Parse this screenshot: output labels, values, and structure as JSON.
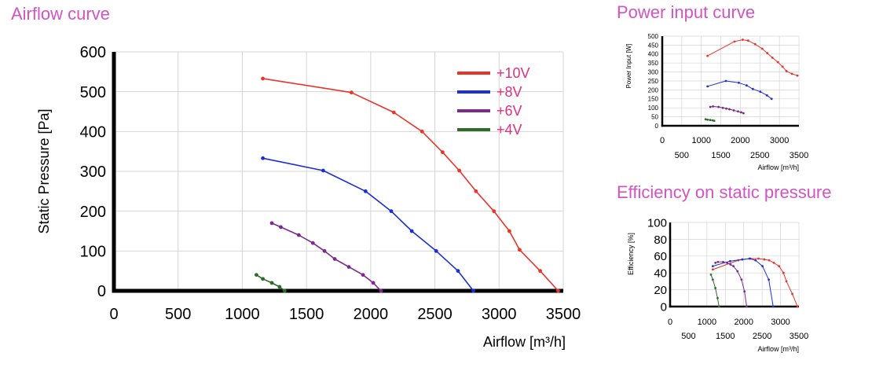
{
  "titles": {
    "airflow": "Airflow curve",
    "power": "Power input curve",
    "efficiency": "Efficiency on static pressure"
  },
  "colors": {
    "title": "#d353c4",
    "legend_text": "#e0317d",
    "s10": "#e8352b",
    "s8": "#1b2ed8",
    "s6": "#7b2a8e",
    "s4": "#2f6b2a"
  },
  "chart_data": [
    {
      "id": "airflow",
      "type": "line",
      "title": "Airflow curve",
      "xlabel": "Airflow [m³/h]",
      "ylabel": "Static Pressure [Pa]",
      "xlim": [
        0,
        3500
      ],
      "ylim": [
        0,
        600
      ],
      "xticks": [
        0,
        500,
        1000,
        1500,
        2000,
        2500,
        3000,
        3500
      ],
      "yticks": [
        0,
        100,
        200,
        300,
        400,
        500,
        600
      ],
      "grid": true,
      "legend": "top-right",
      "series": [
        {
          "name": "+10V",
          "color": "#e8352b",
          "x": [
            1160,
            1850,
            2180,
            2400,
            2560,
            2690,
            2820,
            2960,
            3080,
            3160,
            3320,
            3460
          ],
          "y": [
            533,
            498,
            448,
            400,
            348,
            302,
            250,
            200,
            150,
            103,
            50,
            0
          ]
        },
        {
          "name": "+8V",
          "color": "#1b2ed8",
          "x": [
            1160,
            1630,
            1960,
            2160,
            2320,
            2510,
            2680,
            2800
          ],
          "y": [
            333,
            302,
            250,
            200,
            150,
            100,
            50,
            0
          ]
        },
        {
          "name": "+6V",
          "color": "#7b2a8e",
          "x": [
            1230,
            1300,
            1440,
            1550,
            1640,
            1720,
            1830,
            1940,
            2020,
            2080
          ],
          "y": [
            170,
            160,
            140,
            120,
            100,
            80,
            60,
            40,
            20,
            0
          ]
        },
        {
          "name": "+4V",
          "color": "#2f6b2a",
          "x": [
            1110,
            1160,
            1230,
            1290,
            1330
          ],
          "y": [
            40,
            30,
            20,
            10,
            0
          ]
        }
      ]
    },
    {
      "id": "power",
      "type": "line",
      "title": "Power input curve",
      "xlabel": "Airflow [m³/h]",
      "ylabel": "Power Input [W]",
      "xlim": [
        0,
        3500
      ],
      "ylim": [
        0,
        500
      ],
      "xticks": [
        0,
        500,
        1000,
        1500,
        2000,
        2500,
        3000,
        3500
      ],
      "yticks": [
        0,
        50,
        100,
        150,
        200,
        250,
        300,
        350,
        400,
        450,
        500
      ],
      "grid": true,
      "series": [
        {
          "name": "+10V",
          "color": "#e8352b",
          "x": [
            1160,
            1850,
            2060,
            2200,
            2380,
            2560,
            2690,
            2820,
            2960,
            3080,
            3180,
            3320,
            3460
          ],
          "y": [
            390,
            470,
            480,
            475,
            455,
            430,
            405,
            380,
            355,
            330,
            305,
            290,
            280
          ]
        },
        {
          "name": "+8V",
          "color": "#1b2ed8",
          "x": [
            1160,
            1630,
            1960,
            2160,
            2320,
            2510,
            2680,
            2800
          ],
          "y": [
            220,
            250,
            240,
            225,
            205,
            190,
            170,
            150
          ]
        },
        {
          "name": "+6V",
          "color": "#7b2a8e",
          "x": [
            1230,
            1300,
            1440,
            1550,
            1640,
            1720,
            1830,
            1940,
            2020,
            2080
          ],
          "y": [
            105,
            108,
            105,
            100,
            96,
            92,
            86,
            80,
            75,
            70
          ]
        },
        {
          "name": "+4V",
          "color": "#2f6b2a",
          "x": [
            1110,
            1160,
            1230,
            1290,
            1330
          ],
          "y": [
            36,
            34,
            32,
            30,
            28
          ]
        }
      ]
    },
    {
      "id": "efficiency",
      "type": "line",
      "title": "Efficiency on static pressure",
      "xlabel": "Airflow [m³/h]",
      "ylabel": "Efficiency [%]",
      "xlim": [
        0,
        3500
      ],
      "ylim": [
        0,
        100
      ],
      "xticks": [
        0,
        500,
        1000,
        1500,
        2000,
        2500,
        3000,
        3500
      ],
      "yticks": [
        0,
        20,
        40,
        60,
        80,
        100
      ],
      "grid": true,
      "series": [
        {
          "name": "+10V",
          "color": "#e8352b",
          "x": [
            1160,
            1850,
            2180,
            2400,
            2560,
            2690,
            2820,
            2960,
            3080,
            3160,
            3320,
            3460
          ],
          "y": [
            44,
            55,
            57,
            57,
            56,
            55,
            52,
            48,
            40,
            30,
            15,
            0
          ]
        },
        {
          "name": "+8V",
          "color": "#1b2ed8",
          "x": [
            1160,
            1630,
            1960,
            2160,
            2320,
            2510,
            2680,
            2800
          ],
          "y": [
            48,
            54,
            56,
            57,
            55,
            48,
            32,
            0
          ]
        },
        {
          "name": "+6V",
          "color": "#7b2a8e",
          "x": [
            1230,
            1300,
            1440,
            1550,
            1640,
            1720,
            1830,
            1940,
            2020,
            2080
          ],
          "y": [
            52,
            53,
            53,
            52,
            50,
            48,
            42,
            32,
            18,
            0
          ]
        },
        {
          "name": "+4V",
          "color": "#2f6b2a",
          "x": [
            1110,
            1160,
            1230,
            1290,
            1330
          ],
          "y": [
            38,
            32,
            22,
            10,
            0
          ]
        }
      ]
    }
  ]
}
